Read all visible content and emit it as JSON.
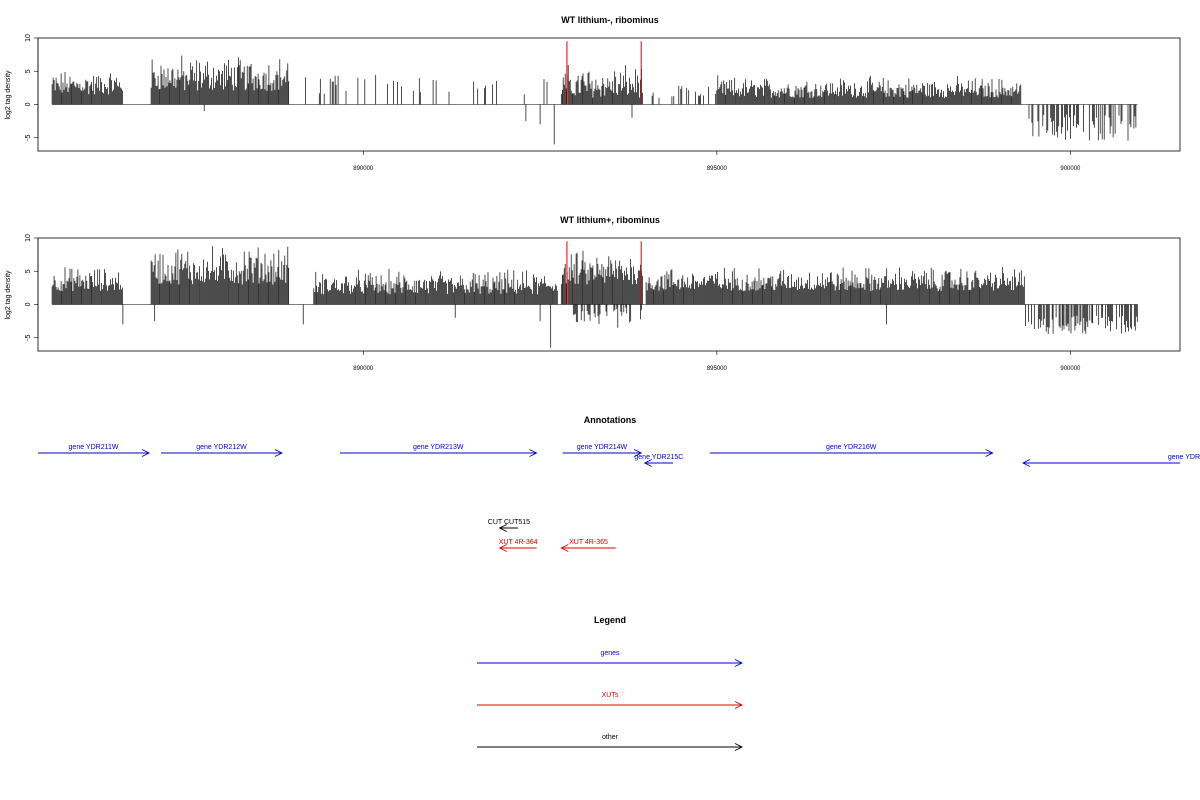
{
  "chart_data": [
    {
      "type": "bar",
      "title": "WT lithium-, ribominus",
      "ylabel": "log2 tag density",
      "xlabel": "",
      "xlim": [
        885400,
        901550
      ],
      "ylim": [
        -7,
        10
      ],
      "yticks": [
        10,
        5,
        0,
        -5
      ],
      "xticks": [
        890000,
        895000,
        900000
      ],
      "grid": false,
      "baseline_range": [
        885600,
        900950
      ],
      "dense_regions": [
        {
          "x": [
            885600,
            886600
          ],
          "y_range": [
            1.5,
            5.5
          ]
        },
        {
          "x": [
            887000,
            888950
          ],
          "y_range": [
            2,
            8
          ]
        },
        {
          "x": [
            892800,
            893950
          ],
          "y_range": [
            1,
            6.5
          ]
        },
        {
          "x": [
            895000,
            899300
          ],
          "y_range": [
            1,
            4.5
          ]
        }
      ],
      "sparse_regions": [
        {
          "x": [
            889000,
            892750
          ],
          "y_range": [
            1.5,
            4.5
          ],
          "density": 0.12
        },
        {
          "x": [
            894000,
            895000
          ],
          "y_range": [
            1,
            3
          ],
          "density": 0.15
        }
      ],
      "negative_regions": [
        {
          "x": [
            899400,
            900950
          ],
          "y_range": [
            -5.5,
            -1.5
          ],
          "density": 0.5
        }
      ],
      "spikes": [
        {
          "x": 892700,
          "y": -6
        },
        {
          "x": 892300,
          "y": -2.5
        },
        {
          "x": 892500,
          "y": -3
        },
        {
          "x": 887750,
          "y": -1
        },
        {
          "x": 893800,
          "y": -2
        }
      ],
      "markers": [
        {
          "x": 892880,
          "y": 9.5,
          "color": "#dd0000"
        },
        {
          "x": 893930,
          "y": 9.5,
          "color": "#dd0000"
        }
      ]
    },
    {
      "type": "bar",
      "title": "WT lithium+, ribominus",
      "ylabel": "log2 tag density",
      "xlabel": "",
      "xlim": [
        885400,
        901550
      ],
      "ylim": [
        -7,
        10
      ],
      "yticks": [
        10,
        5,
        0,
        -5
      ],
      "xticks": [
        890000,
        895000,
        900000
      ],
      "grid": false,
      "baseline_range": [
        885600,
        900950
      ],
      "dense_regions": [
        {
          "x": [
            885600,
            886600
          ],
          "y_range": [
            2,
            6
          ]
        },
        {
          "x": [
            887000,
            888950
          ],
          "y_range": [
            3,
            9.5
          ]
        },
        {
          "x": [
            889300,
            892750
          ],
          "y_range": [
            1.5,
            5.5
          ]
        },
        {
          "x": [
            892800,
            893950
          ],
          "y_range": [
            3,
            8.5
          ]
        },
        {
          "x": [
            894000,
            899350
          ],
          "y_range": [
            2,
            6
          ]
        }
      ],
      "sparse_regions": [],
      "negative_regions": [
        {
          "x": [
            899350,
            900950
          ],
          "y_range": [
            -4.5,
            -1.5
          ],
          "density": 0.6
        },
        {
          "x": [
            892900,
            893950
          ],
          "y_range": [
            -3,
            -0.5
          ],
          "density": 0.25
        }
      ],
      "spikes": [
        {
          "x": 892650,
          "y": -6.5
        },
        {
          "x": 886600,
          "y": -3
        },
        {
          "x": 887050,
          "y": -2.5
        },
        {
          "x": 889150,
          "y": -3
        },
        {
          "x": 893600,
          "y": -3.5
        },
        {
          "x": 897400,
          "y": -3
        },
        {
          "x": 892500,
          "y": -2.5
        },
        {
          "x": 891300,
          "y": -2
        }
      ],
      "markers": [
        {
          "x": 892880,
          "y": 9.5,
          "color": "#dd0000"
        },
        {
          "x": 893930,
          "y": 9.5,
          "color": "#dd0000"
        }
      ]
    }
  ],
  "annotations": {
    "title": "Annotations",
    "xlim": [
      885400,
      901550
    ],
    "tracks": [
      {
        "label": "gene YDR211W",
        "start": 885400,
        "end": 886970,
        "dir": "+",
        "row": 0,
        "color": "#0000cc"
      },
      {
        "label": "gene YDR212W",
        "start": 887140,
        "end": 888850,
        "dir": "+",
        "row": 0,
        "color": "#0000cc"
      },
      {
        "label": "gene YDR213W",
        "start": 889670,
        "end": 892450,
        "dir": "+",
        "row": 0,
        "color": "#0000cc"
      },
      {
        "label": "gene YDR214W",
        "start": 892820,
        "end": 893930,
        "dir": "+",
        "row": 0,
        "color": "#0000cc"
      },
      {
        "label": "gene YDR215C",
        "start": 893980,
        "end": 894380,
        "dir": "-",
        "row": 1,
        "color": "#0000cc"
      },
      {
        "label": "gene YDR216W",
        "start": 894900,
        "end": 898900,
        "dir": "+",
        "row": 0,
        "color": "#0000cc"
      },
      {
        "label": "gene YDR",
        "start": 899330,
        "end": 901550,
        "dir": "-",
        "row": 1,
        "color": "#0000cc",
        "label_anchor": "right"
      },
      {
        "label": "CUT CUT515",
        "start": 891930,
        "end": 892190,
        "dir": "-",
        "row": 2,
        "color": "#000000"
      },
      {
        "label": "XUT 4R-364",
        "start": 891930,
        "end": 892450,
        "dir": "-",
        "row": 3,
        "color": "#dd0000"
      },
      {
        "label": "XUT 4R-365",
        "start": 892800,
        "end": 893570,
        "dir": "-",
        "row": 3,
        "color": "#dd0000"
      }
    ]
  },
  "legend": {
    "title": "Legend",
    "items": [
      {
        "label": "genes",
        "color": "#0000cc"
      },
      {
        "label": "XUTs",
        "color": "#dd0000"
      },
      {
        "label": "other",
        "color": "#000000"
      }
    ]
  }
}
